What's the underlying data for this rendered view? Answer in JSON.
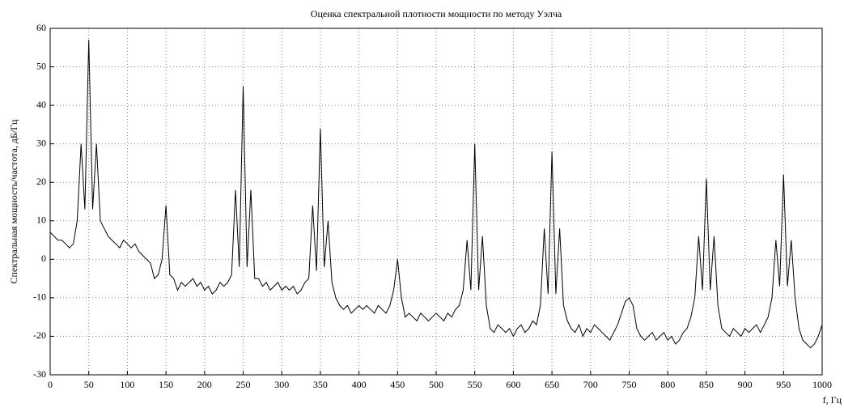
{
  "chart_data": {
    "type": "line",
    "title": "Оценка спектральной плотности мощности по методу Уэлча",
    "x_label": "f, Гц",
    "y_label": "Спектральная мощность/частота, дБ/Гц",
    "x": [
      0,
      5,
      10,
      15,
      20,
      25,
      30,
      35,
      40,
      45,
      50,
      55,
      60,
      65,
      70,
      75,
      80,
      85,
      90,
      95,
      100,
      105,
      110,
      115,
      120,
      125,
      130,
      135,
      140,
      145,
      150,
      155,
      160,
      165,
      170,
      175,
      180,
      185,
      190,
      195,
      200,
      205,
      210,
      215,
      220,
      225,
      230,
      235,
      240,
      245,
      250,
      255,
      260,
      265,
      270,
      275,
      280,
      285,
      290,
      295,
      300,
      305,
      310,
      315,
      320,
      325,
      330,
      335,
      340,
      345,
      350,
      355,
      360,
      365,
      370,
      375,
      380,
      385,
      390,
      395,
      400,
      405,
      410,
      415,
      420,
      425,
      430,
      435,
      440,
      445,
      450,
      455,
      460,
      465,
      470,
      475,
      480,
      485,
      490,
      495,
      500,
      505,
      510,
      515,
      520,
      525,
      530,
      535,
      540,
      545,
      550,
      555,
      560,
      565,
      570,
      575,
      580,
      585,
      590,
      595,
      600,
      605,
      610,
      615,
      620,
      625,
      630,
      635,
      640,
      645,
      650,
      655,
      660,
      665,
      670,
      675,
      680,
      685,
      690,
      695,
      700,
      705,
      710,
      715,
      720,
      725,
      730,
      735,
      740,
      745,
      750,
      755,
      760,
      765,
      770,
      775,
      780,
      785,
      790,
      795,
      800,
      805,
      810,
      815,
      820,
      825,
      830,
      835,
      840,
      845,
      850,
      855,
      860,
      865,
      870,
      875,
      880,
      885,
      890,
      895,
      900,
      905,
      910,
      915,
      920,
      925,
      930,
      935,
      940,
      945,
      950,
      955,
      960,
      965,
      970,
      975,
      980,
      985,
      990,
      995,
      1000
    ],
    "series": [
      {
        "color": "#000000",
        "values": [
          7,
          6,
          5,
          5,
          4,
          3,
          4,
          10,
          30,
          13,
          57,
          13,
          30,
          10,
          8,
          6,
          5,
          4,
          3,
          5,
          4,
          3,
          4,
          2,
          1,
          0,
          -1,
          -5,
          -4,
          0,
          14,
          -4,
          -5,
          -8,
          -6,
          -7,
          -6,
          -5,
          -7,
          -6,
          -8,
          -7,
          -9,
          -8,
          -6,
          -7,
          -6,
          -4,
          18,
          -2,
          45,
          -2,
          18,
          -5,
          -5,
          -7,
          -6,
          -8,
          -7,
          -6,
          -8,
          -7,
          -8,
          -7,
          -9,
          -8,
          -6,
          -5,
          14,
          -3,
          34,
          -2,
          10,
          -6,
          -10,
          -12,
          -13,
          -12,
          -14,
          -13,
          -12,
          -13,
          -12,
          -13,
          -14,
          -12,
          -13,
          -14,
          -12,
          -8,
          0,
          -10,
          -15,
          -14,
          -15,
          -16,
          -14,
          -15,
          -16,
          -15,
          -14,
          -15,
          -16,
          -14,
          -15,
          -13,
          -12,
          -8,
          5,
          -8,
          30,
          -8,
          6,
          -12,
          -18,
          -19,
          -17,
          -18,
          -19,
          -18,
          -20,
          -18,
          -17,
          -19,
          -18,
          -16,
          -17,
          -12,
          8,
          -9,
          28,
          -9,
          8,
          -12,
          -16,
          -18,
          -19,
          -17,
          -20,
          -18,
          -19,
          -17,
          -18,
          -19,
          -20,
          -21,
          -19,
          -17,
          -14,
          -11,
          -10,
          -12,
          -18,
          -20,
          -21,
          -20,
          -19,
          -21,
          -20,
          -19,
          -21,
          -20,
          -22,
          -21,
          -19,
          -18,
          -15,
          -10,
          6,
          -8,
          21,
          -8,
          6,
          -12,
          -18,
          -19,
          -20,
          -18,
          -19,
          -20,
          -18,
          -19,
          -18,
          -17,
          -19,
          -17,
          -15,
          -10,
          5,
          -7,
          22,
          -7,
          5,
          -10,
          -18,
          -21,
          -22,
          -23,
          -22,
          -20,
          -17
        ]
      }
    ],
    "xlim": [
      0,
      1000
    ],
    "ylim": [
      -30,
      60
    ],
    "xticks": [
      0,
      50,
      100,
      150,
      200,
      250,
      300,
      350,
      400,
      450,
      500,
      550,
      600,
      650,
      700,
      750,
      800,
      850,
      900,
      950,
      1000
    ],
    "yticks": [
      -30,
      -20,
      -10,
      0,
      10,
      20,
      30,
      40,
      50,
      60
    ],
    "grid": true
  }
}
